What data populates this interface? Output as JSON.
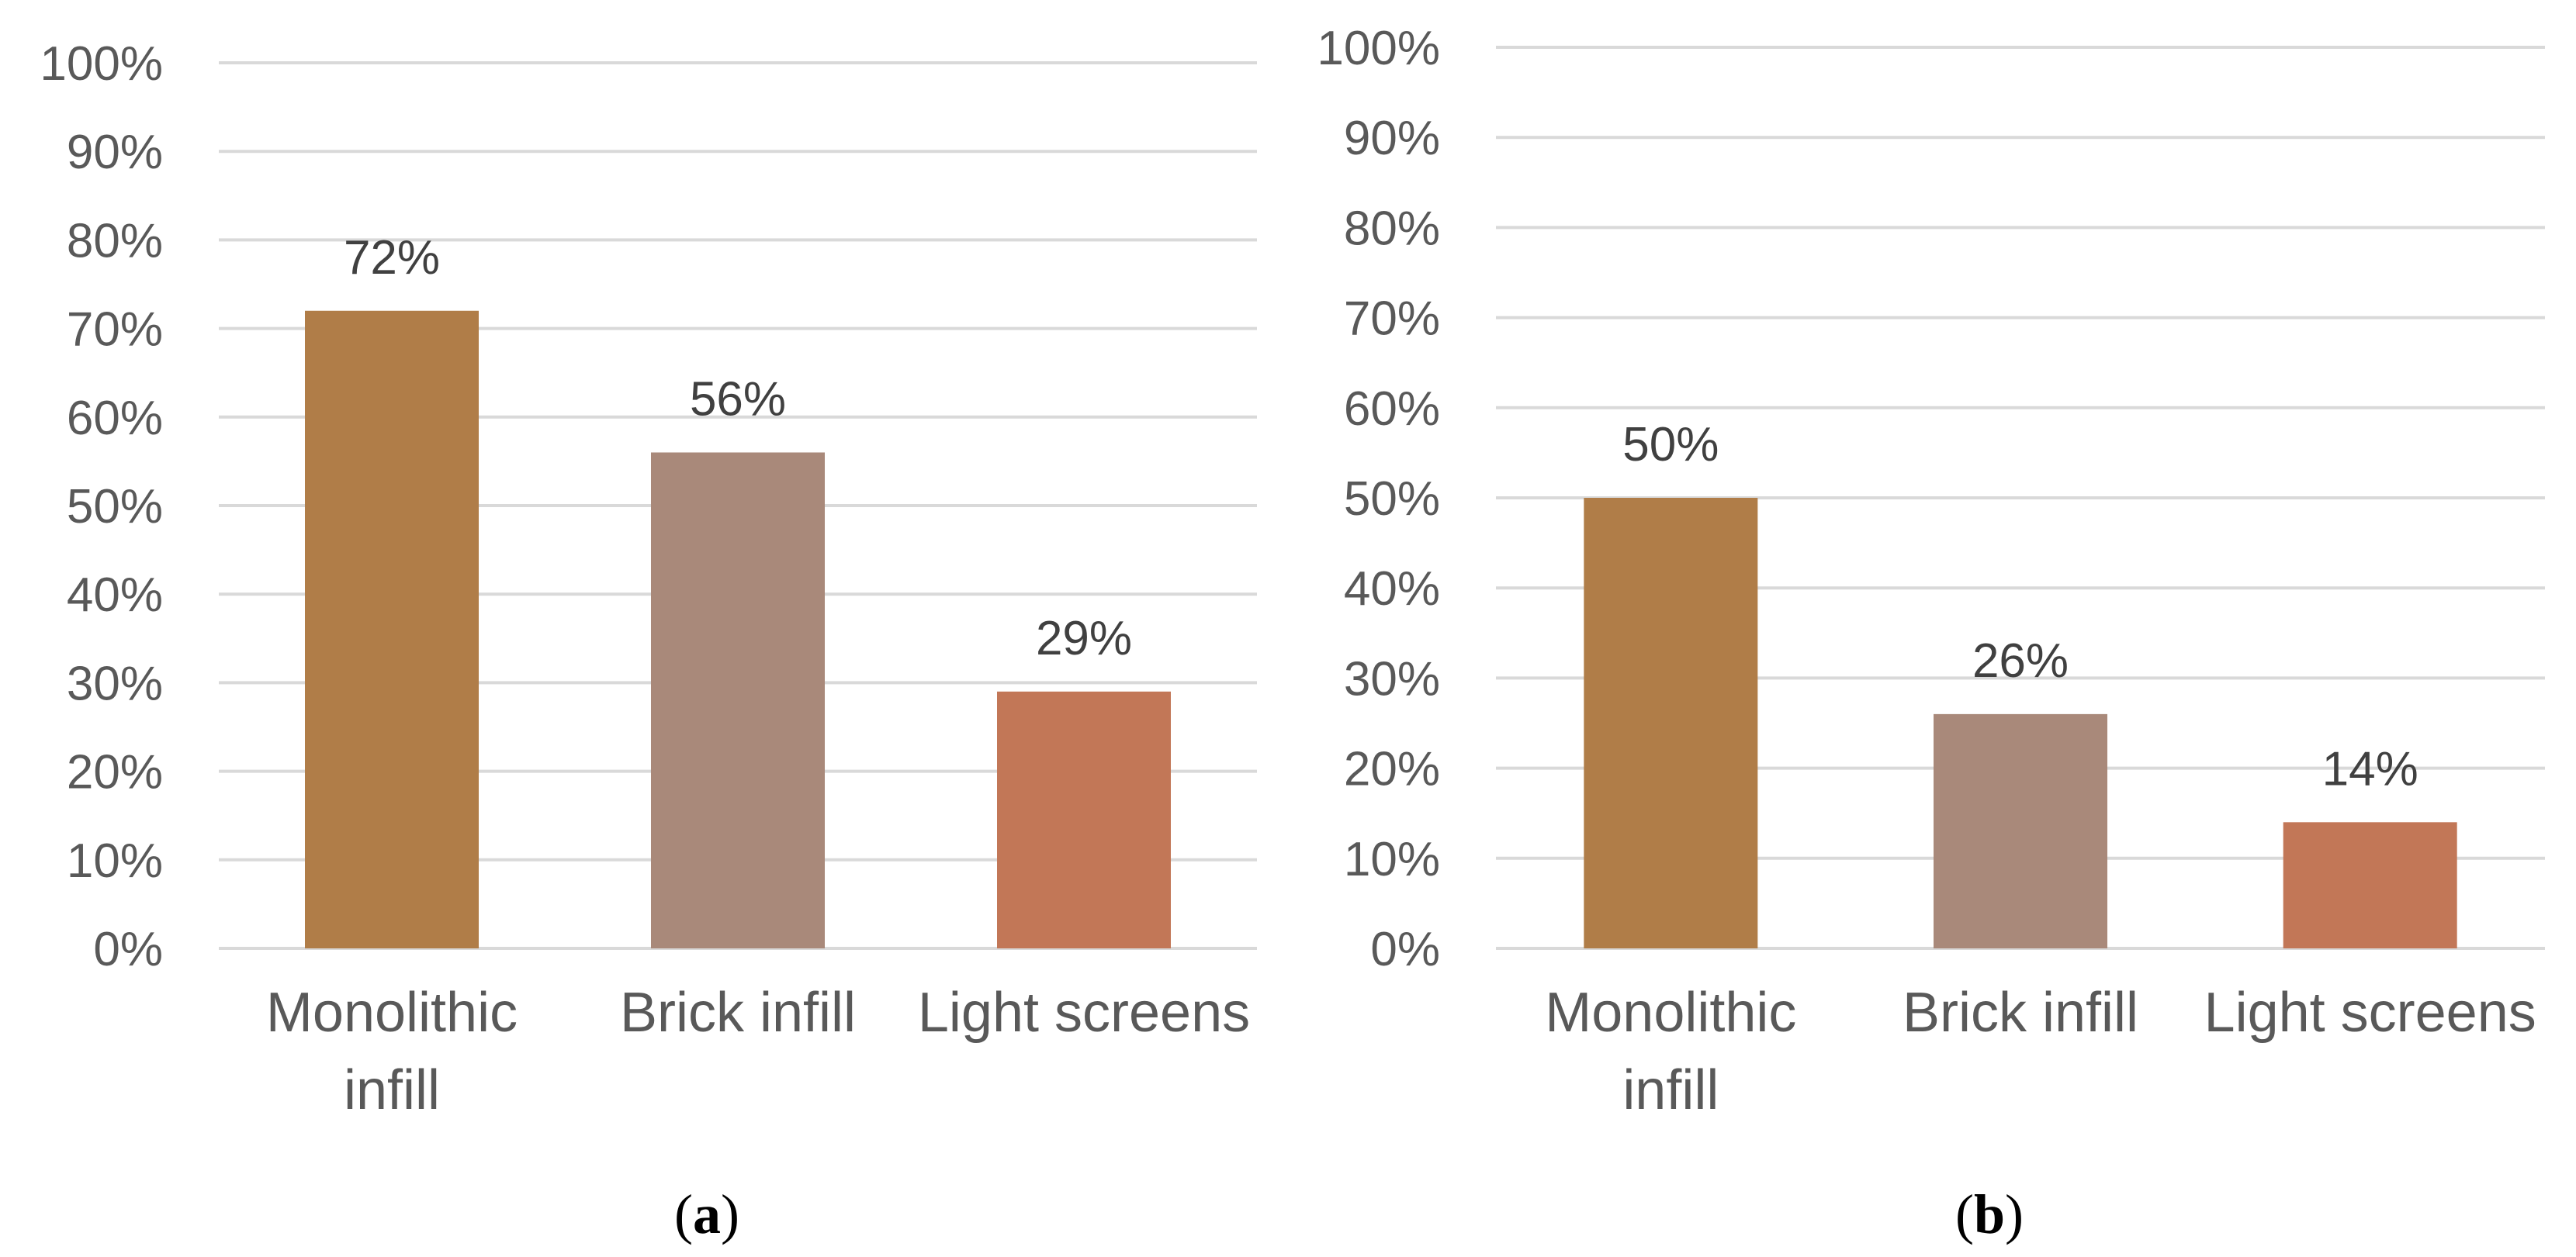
{
  "chart_data": [
    {
      "type": "bar",
      "panel_label": "a",
      "categories": [
        [
          "Monolithic",
          "infill"
        ],
        [
          "Brick infill"
        ],
        [
          "Light screens"
        ]
      ],
      "values": [
        72,
        56,
        29
      ],
      "data_labels": [
        "72%",
        "56%",
        "29%"
      ],
      "colors": [
        "#b07d48",
        "#a9897a",
        "#c27757"
      ],
      "ylim": [
        0,
        100
      ],
      "yticks": [
        "0%",
        "10%",
        "20%",
        "30%",
        "40%",
        "50%",
        "60%",
        "70%",
        "80%",
        "90%",
        "100%"
      ],
      "grid": true,
      "legend": "none"
    },
    {
      "type": "bar",
      "panel_label": "b",
      "categories": [
        [
          "Monolithic",
          "infill"
        ],
        [
          "Brick infill"
        ],
        [
          "Light screens"
        ]
      ],
      "values": [
        50,
        26,
        14
      ],
      "data_labels": [
        "50%",
        "26%",
        "14%"
      ],
      "colors": [
        "#b07d48",
        "#a9897a",
        "#c27757"
      ],
      "ylim": [
        0,
        100
      ],
      "yticks": [
        "0%",
        "10%",
        "20%",
        "30%",
        "40%",
        "50%",
        "60%",
        "70%",
        "80%",
        "90%",
        "100%"
      ],
      "grid": true,
      "legend": "none"
    }
  ]
}
